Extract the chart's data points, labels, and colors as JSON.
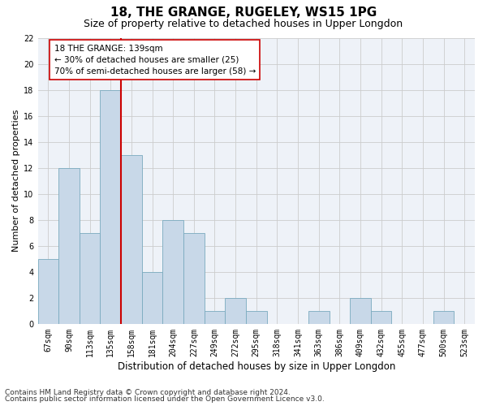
{
  "title": "18, THE GRANGE, RUGELEY, WS15 1PG",
  "subtitle": "Size of property relative to detached houses in Upper Longdon",
  "xlabel": "Distribution of detached houses by size in Upper Longdon",
  "ylabel": "Number of detached properties",
  "categories": [
    "67sqm",
    "90sqm",
    "113sqm",
    "135sqm",
    "158sqm",
    "181sqm",
    "204sqm",
    "227sqm",
    "249sqm",
    "272sqm",
    "295sqm",
    "318sqm",
    "341sqm",
    "363sqm",
    "386sqm",
    "409sqm",
    "432sqm",
    "455sqm",
    "477sqm",
    "500sqm",
    "523sqm"
  ],
  "values": [
    5,
    12,
    7,
    18,
    13,
    4,
    8,
    7,
    1,
    2,
    1,
    0,
    0,
    1,
    0,
    2,
    1,
    0,
    0,
    1,
    0
  ],
  "bar_color": "#c8d8e8",
  "bar_edgecolor": "#7aaabf",
  "vline_x": 3.5,
  "vline_color": "#cc0000",
  "annotation_text": "18 THE GRANGE: 139sqm\n← 30% of detached houses are smaller (25)\n70% of semi-detached houses are larger (58) →",
  "annotation_box_color": "white",
  "annotation_box_edgecolor": "#cc0000",
  "ylim": [
    0,
    22
  ],
  "yticks": [
    0,
    2,
    4,
    6,
    8,
    10,
    12,
    14,
    16,
    18,
    20,
    22
  ],
  "grid_color": "#cccccc",
  "background_color": "#eef2f8",
  "footer_line1": "Contains HM Land Registry data © Crown copyright and database right 2024.",
  "footer_line2": "Contains public sector information licensed under the Open Government Licence v3.0.",
  "title_fontsize": 11,
  "subtitle_fontsize": 9,
  "xlabel_fontsize": 8.5,
  "ylabel_fontsize": 8,
  "tick_fontsize": 7,
  "footer_fontsize": 6.5,
  "annotation_fontsize": 7.5
}
